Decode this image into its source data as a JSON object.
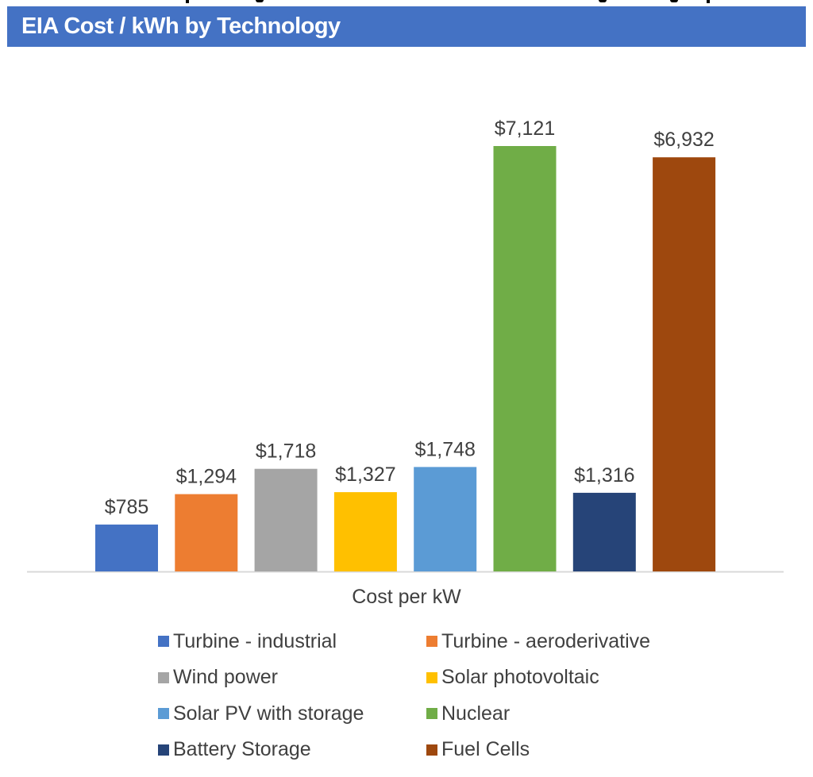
{
  "header": {
    "title": "EIA Cost / kWh by Technology",
    "banner_color": "#4472c4"
  },
  "chart_data": {
    "type": "bar",
    "title": "EIA Cost / kWh by Technology",
    "xlabel": "Cost per kW",
    "ylabel": "",
    "ylim": [
      0,
      7121
    ],
    "grid": false,
    "legend_position": "bottom",
    "categories": [
      "Cost per kW"
    ],
    "series": [
      {
        "name": "Turbine - industrial",
        "values": [
          785
        ],
        "label": "$785",
        "color": "#4472c4"
      },
      {
        "name": "Turbine - aeroderivative",
        "values": [
          1294
        ],
        "label": "$1,294",
        "color": "#ed7d31"
      },
      {
        "name": "Wind power",
        "values": [
          1718
        ],
        "label": "$1,718",
        "color": "#a5a5a5"
      },
      {
        "name": "Solar photovoltaic",
        "values": [
          1327
        ],
        "label": "$1,327",
        "color": "#ffc000"
      },
      {
        "name": "Solar PV with storage",
        "values": [
          1748
        ],
        "label": "$1,748",
        "color": "#5b9bd5"
      },
      {
        "name": "Nuclear",
        "values": [
          7121
        ],
        "label": "$7,121",
        "color": "#70ad47"
      },
      {
        "name": "Battery Storage",
        "values": [
          1316
        ],
        "label": "$1,316",
        "color": "#264478"
      },
      {
        "name": "Fuel Cells",
        "values": [
          6932
        ],
        "label": "$6,932",
        "color": "#9e480e"
      }
    ]
  }
}
